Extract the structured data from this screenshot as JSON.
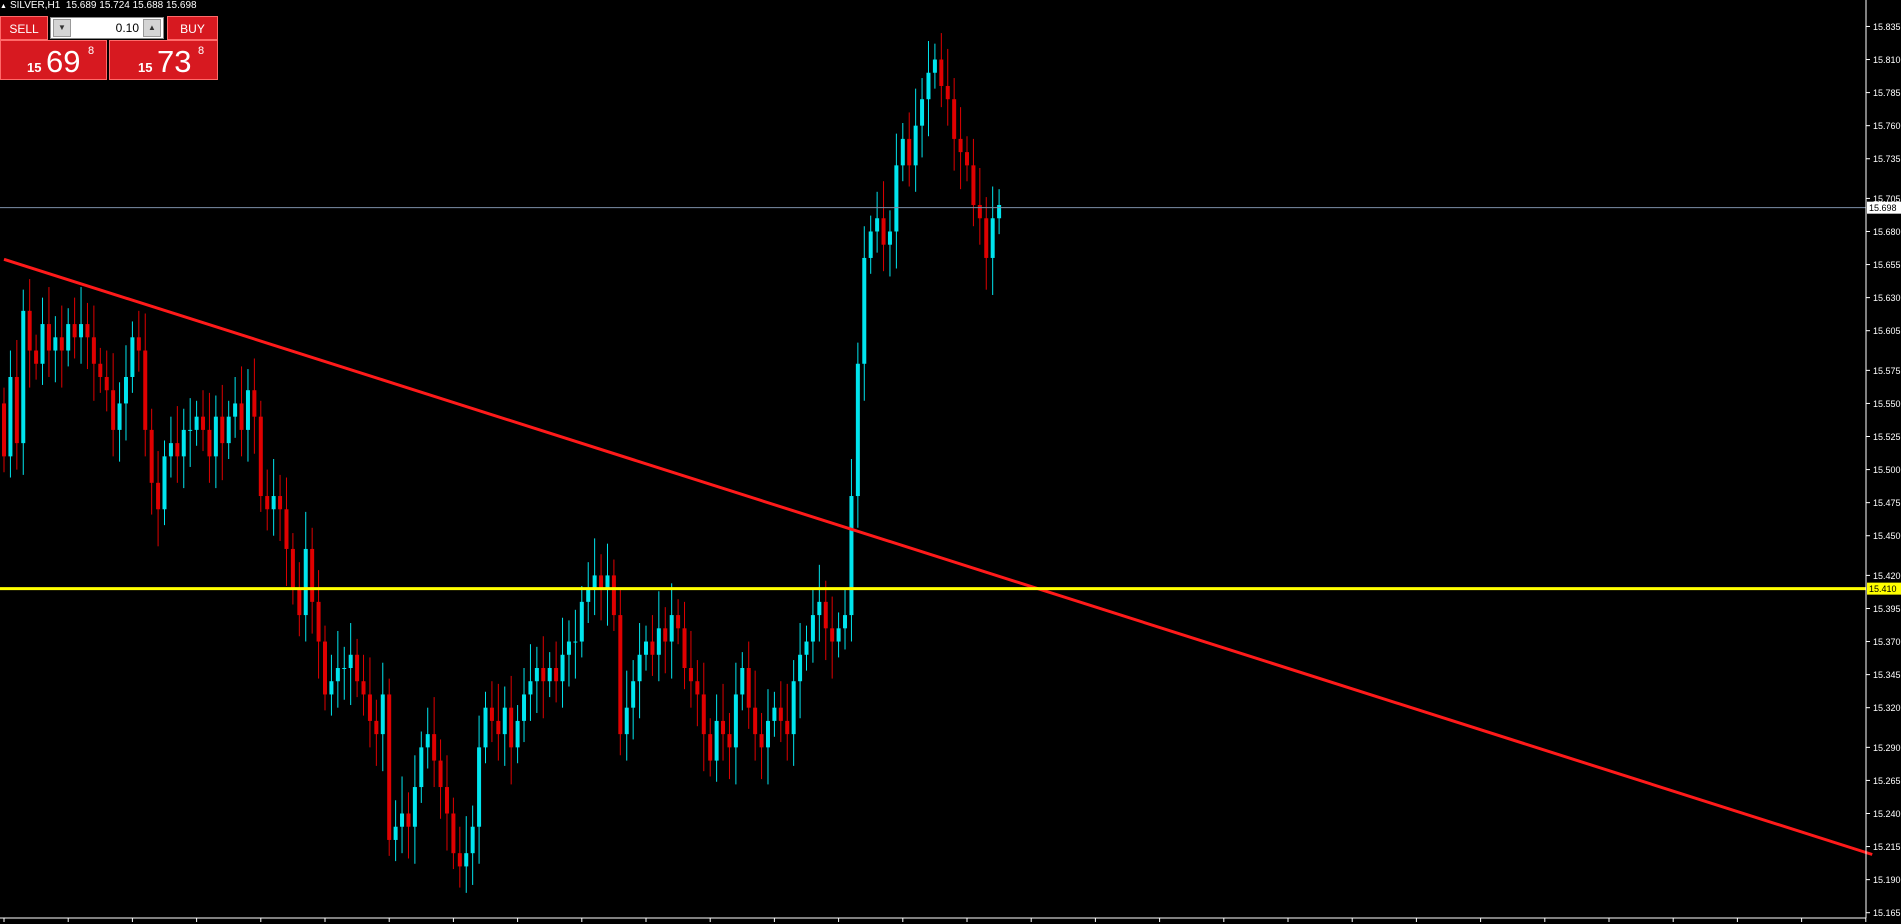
{
  "header": {
    "symbol": "SILVER,H1",
    "ohlc": "15.689 15.724 15.688 15.698"
  },
  "trade_panel": {
    "sell_label": "SELL",
    "buy_label": "BUY",
    "lot": "0.10",
    "sell_quote": {
      "prefix": "15",
      "main": "69",
      "suffix": "8"
    },
    "buy_quote": {
      "prefix": "15",
      "main": "73",
      "suffix": "8"
    }
  },
  "colors": {
    "bull": "#00e5ee",
    "bear": "#e00000",
    "trendline": "#ff1a1a",
    "level": "#ffff00",
    "price_line": "#7d8fa8",
    "axis": "#ffffff"
  },
  "chart_data": {
    "type": "candlestick",
    "y_ticks": [
      "15.835",
      "15.810",
      "15.785",
      "15.760",
      "15.735",
      "15.705",
      "15.680",
      "15.655",
      "15.630",
      "15.605",
      "15.575",
      "15.550",
      "15.525",
      "15.500",
      "15.475",
      "15.450",
      "15.420",
      "15.395",
      "15.370",
      "15.345",
      "15.320",
      "15.290",
      "15.265",
      "15.240",
      "15.215",
      "15.190",
      "15.165"
    ],
    "ylim": [
      15.161,
      15.855
    ],
    "current_price": 15.698,
    "current_price_label": "15.698",
    "horizontal_level": 15.41,
    "horizontal_level_label": "15.410",
    "trendline": {
      "start": [
        0,
        15.659
      ],
      "end": [
        291,
        15.209
      ]
    },
    "grid": false,
    "candles_per_tick": 10,
    "closes": [
      15.51,
      15.57,
      15.52,
      15.62,
      15.59,
      15.58,
      15.61,
      15.59,
      15.6,
      15.59,
      15.61,
      15.6,
      15.61,
      15.6,
      15.58,
      15.57,
      15.56,
      15.53,
      15.55,
      15.57,
      15.6,
      15.59,
      15.53,
      15.49,
      15.47,
      15.51,
      15.52,
      15.51,
      15.53,
      15.53,
      15.54,
      15.53,
      15.51,
      15.54,
      15.52,
      15.54,
      15.55,
      15.53,
      15.56,
      15.54,
      15.48,
      15.47,
      15.48,
      15.47,
      15.44,
      15.41,
      15.39,
      15.44,
      15.4,
      15.37,
      15.33,
      15.34,
      15.35,
      15.35,
      15.36,
      15.34,
      15.33,
      15.31,
      15.3,
      15.33,
      15.22,
      15.23,
      15.24,
      15.23,
      15.26,
      15.29,
      15.3,
      15.28,
      15.26,
      15.24,
      15.21,
      15.2,
      15.21,
      15.23,
      15.29,
      15.32,
      15.31,
      15.3,
      15.32,
      15.29,
      15.31,
      15.33,
      15.34,
      15.35,
      15.34,
      15.35,
      15.34,
      15.36,
      15.37,
      15.37,
      15.4,
      15.41,
      15.42,
      15.41,
      15.42,
      15.39,
      15.3,
      15.32,
      15.34,
      15.36,
      15.37,
      15.36,
      15.38,
      15.37,
      15.39,
      15.38,
      15.35,
      15.34,
      15.33,
      15.3,
      15.28,
      15.31,
      15.3,
      15.29,
      15.33,
      15.35,
      15.32,
      15.3,
      15.29,
      15.31,
      15.32,
      15.31,
      15.3,
      15.34,
      15.36,
      15.37,
      15.39,
      15.4,
      15.38,
      15.37,
      15.38,
      15.39,
      15.48,
      15.58,
      15.66,
      15.68,
      15.69,
      15.67,
      15.68,
      15.73,
      15.75,
      15.73,
      15.76,
      15.78,
      15.8,
      15.81,
      15.79,
      15.78,
      15.75,
      15.74,
      15.73,
      15.7,
      15.69,
      15.66,
      15.69,
      15.7
    ]
  }
}
